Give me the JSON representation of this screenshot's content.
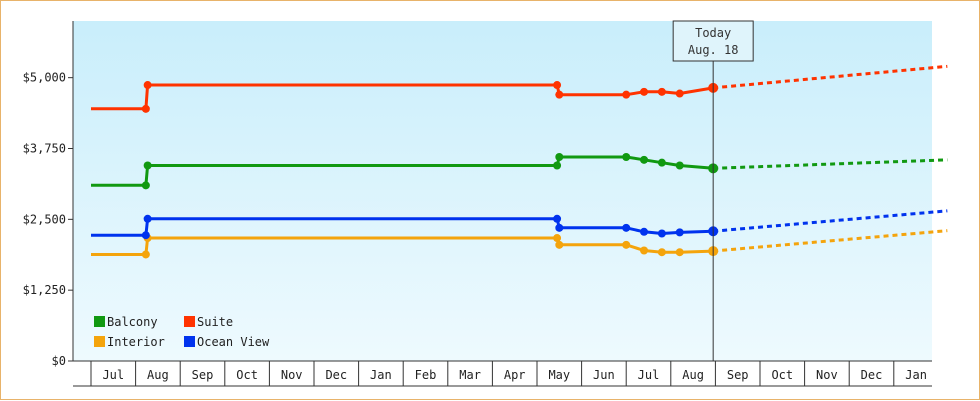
{
  "chart_data": {
    "type": "line",
    "title": "",
    "xlabel": "",
    "ylabel": "",
    "ylim": [
      0,
      6000
    ],
    "y_ticks": [
      {
        "value": 0,
        "label": "$0"
      },
      {
        "value": 1250,
        "label": "$1,250"
      },
      {
        "value": 2500,
        "label": "$2,500"
      },
      {
        "value": 3750,
        "label": "$3,750"
      },
      {
        "value": 5000,
        "label": "$5,000"
      }
    ],
    "x_months": [
      "Jul",
      "Aug",
      "Sep",
      "Oct",
      "Nov",
      "Dec",
      "Jan",
      "Feb",
      "Mar",
      "Apr",
      "May",
      "Jun",
      "Jul",
      "Aug",
      "Sep",
      "Oct",
      "Nov",
      "Dec",
      "Jan"
    ],
    "xlim_month_index": [
      -0.4,
      18.8
    ],
    "today_marker": {
      "line1": "Today",
      "line2": "Aug. 18",
      "month_index": 13.55
    },
    "legend_placement": "bottom-left",
    "series": [
      {
        "name": "Balcony",
        "color": "#119911",
        "points": [
          [
            -0.4,
            3100
          ],
          [
            0.83,
            3100
          ],
          [
            0.87,
            3450
          ],
          [
            10.05,
            3450
          ],
          [
            10.1,
            3600
          ],
          [
            11.6,
            3600
          ],
          [
            12.0,
            3550
          ],
          [
            12.4,
            3500
          ],
          [
            12.8,
            3450
          ],
          [
            13.55,
            3400
          ]
        ],
        "forecast": [
          [
            13.55,
            3400
          ],
          [
            18.8,
            3550
          ]
        ]
      },
      {
        "name": "Suite",
        "color": "#ff3300",
        "points": [
          [
            -0.4,
            4450
          ],
          [
            0.83,
            4450
          ],
          [
            0.87,
            4870
          ],
          [
            10.05,
            4870
          ],
          [
            10.1,
            4700
          ],
          [
            11.6,
            4700
          ],
          [
            12.0,
            4750
          ],
          [
            12.4,
            4750
          ],
          [
            12.8,
            4720
          ],
          [
            13.55,
            4820
          ]
        ],
        "forecast": [
          [
            13.55,
            4820
          ],
          [
            18.8,
            5200
          ]
        ]
      },
      {
        "name": "Interior",
        "color": "#f4a40c",
        "points": [
          [
            -0.4,
            1880
          ],
          [
            0.83,
            1880
          ],
          [
            0.87,
            2170
          ],
          [
            10.05,
            2170
          ],
          [
            10.1,
            2050
          ],
          [
            11.6,
            2050
          ],
          [
            12.0,
            1950
          ],
          [
            12.4,
            1920
          ],
          [
            12.8,
            1920
          ],
          [
            13.55,
            1940
          ]
        ],
        "forecast": [
          [
            13.55,
            1940
          ],
          [
            18.8,
            2300
          ]
        ]
      },
      {
        "name": "Ocean View",
        "color": "#0033ee",
        "points": [
          [
            -0.4,
            2220
          ],
          [
            0.83,
            2220
          ],
          [
            0.87,
            2510
          ],
          [
            10.05,
            2510
          ],
          [
            10.1,
            2350
          ],
          [
            11.6,
            2350
          ],
          [
            12.0,
            2280
          ],
          [
            12.4,
            2250
          ],
          [
            12.8,
            2270
          ],
          [
            13.55,
            2290
          ]
        ],
        "forecast": [
          [
            13.55,
            2290
          ],
          [
            18.8,
            2650
          ]
        ]
      }
    ]
  }
}
